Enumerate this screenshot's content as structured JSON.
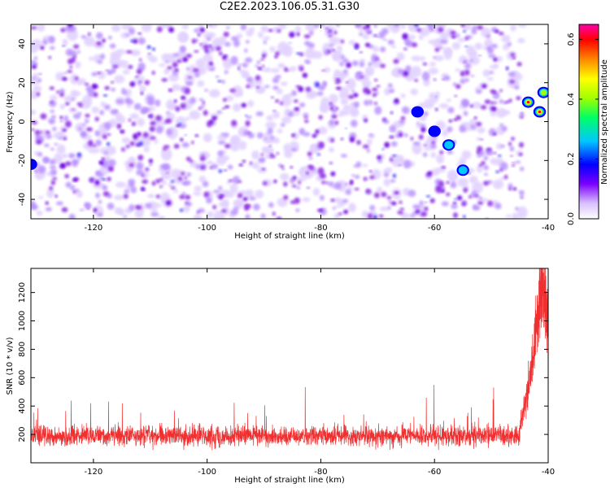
{
  "title": "C2E2.2023.106.05.31.G30",
  "colors": {
    "snr_line": "#f03030",
    "spectrogram_low": "#e0ccff",
    "spectrogram_mid": "#8a2be2",
    "spectrogram_peak": "#2244ff",
    "colormap": [
      "#ffffff",
      "#7a00ff",
      "#0000ff",
      "#00c8ff",
      "#00ff66",
      "#a0ff00",
      "#ffff00",
      "#ff8800",
      "#ff0000",
      "#ff00aa"
    ]
  },
  "chart_data": [
    {
      "type": "heatmap",
      "title": "C2E2.2023.106.05.31.G30",
      "xlabel": "Height of straight line (km)",
      "ylabel": "Frequency (Hz)",
      "xlim": [
        -131,
        -40
      ],
      "ylim": [
        -50,
        50
      ],
      "x_ticks": [
        -120,
        -100,
        -80,
        -60,
        -40
      ],
      "y_ticks": [
        -40,
        -20,
        0,
        20,
        40
      ],
      "colorbar": {
        "label": "Normalized spectral amplitude",
        "range": [
          0,
          0.65
        ],
        "ticks": [
          0.0,
          0.2,
          0.4,
          0.6
        ]
      },
      "features": [
        {
          "x": -43.5,
          "y": 10,
          "amplitude": 0.55
        },
        {
          "x": -41.5,
          "y": 5,
          "amplitude": 0.6
        },
        {
          "x": -40.8,
          "y": 15,
          "amplitude": 0.3
        },
        {
          "x": -55,
          "y": -25,
          "amplitude": 0.2
        },
        {
          "x": -57.5,
          "y": -12,
          "amplitude": 0.22
        },
        {
          "x": -60,
          "y": -5,
          "amplitude": 0.18
        },
        {
          "x": -63,
          "y": 5,
          "amplitude": 0.15
        },
        {
          "x": -131,
          "y": -22,
          "amplitude": 0.15
        }
      ]
    },
    {
      "type": "line",
      "xlabel": "Height of straight line (km)",
      "ylabel": "SNR (10 * v/v)",
      "xlim": [
        -131,
        -40
      ],
      "ylim": [
        0,
        1370
      ],
      "x_ticks": [
        -120,
        -100,
        -80,
        -60,
        -40
      ],
      "y_ticks": [
        200,
        400,
        600,
        800,
        1000,
        1200
      ],
      "noise_floor": {
        "x_range": [
          -131,
          -45
        ],
        "mean": 190,
        "spread": 90,
        "peak_max": 550
      },
      "rise": [
        {
          "x": -45,
          "y": 250
        },
        {
          "x": -44,
          "y": 420
        },
        {
          "x": -43,
          "y": 650
        },
        {
          "x": -42,
          "y": 950
        },
        {
          "x": -41.5,
          "y": 1200
        },
        {
          "x": -41,
          "y": 1300
        },
        {
          "x": -40.5,
          "y": 1150
        },
        {
          "x": -40.1,
          "y": 1000
        }
      ]
    }
  ]
}
